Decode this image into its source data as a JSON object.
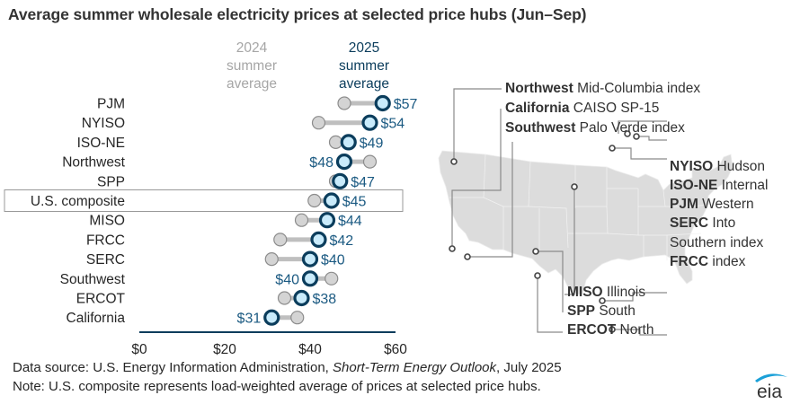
{
  "title": "Average summer wholesale electricity prices at selected price hubs (Jun–Sep)",
  "chart_data": {
    "type": "dumbbell",
    "title": "Average summer wholesale electricity prices at selected price hubs (Jun–Sep)",
    "xlabel": "",
    "ylabel": "",
    "xlim": [
      0,
      60
    ],
    "x_ticks": [
      "$0",
      "$20",
      "$40",
      "$60"
    ],
    "x_tick_values": [
      0,
      20,
      40,
      60
    ],
    "legend": {
      "series_2024": "2024 summer average",
      "series_2025": "2025 summer average",
      "placement": "top"
    },
    "highlighted_category": "U.S. composite",
    "categories": [
      "PJM",
      "NYISO",
      "ISO-NE",
      "Northwest",
      "SPP",
      "U.S. composite",
      "MISO",
      "FRCC",
      "SERC",
      "Southwest",
      "ERCOT",
      "California"
    ],
    "series": [
      {
        "name": "2024 summer average",
        "values": [
          48,
          42,
          46,
          54,
          46,
          41,
          38,
          33,
          31,
          45,
          34,
          37
        ],
        "color": "#c8c8c8"
      },
      {
        "name": "2025 summer average",
        "values": [
          57,
          54,
          49,
          48,
          47,
          45,
          44,
          42,
          40,
          40,
          38,
          31
        ],
        "color": "#0b3d5c"
      }
    ],
    "data_labels": [
      "$57",
      "$54",
      "$49",
      "$48",
      "$47",
      "$45",
      "$44",
      "$42",
      "$40",
      "$40",
      "$38",
      "$31"
    ],
    "label_side": [
      "right",
      "right",
      "right",
      "left",
      "right",
      "right",
      "right",
      "right",
      "right",
      "left",
      "right",
      "left"
    ]
  },
  "legend_text": {
    "y2024": [
      "2024",
      "summer",
      "average"
    ],
    "y2025": [
      "2025",
      "summer",
      "average"
    ]
  },
  "map": {
    "labels": [
      {
        "bold": "Northwest",
        "rest": " Mid-Columbia index"
      },
      {
        "bold": "California",
        "rest": " CAISO SP-15"
      },
      {
        "bold": "Southwest",
        "rest": " Palo Verde index"
      },
      {
        "bold": "NYISO",
        "rest": " Hudson"
      },
      {
        "bold": "ISO-NE",
        "rest": " Internal"
      },
      {
        "bold": "PJM",
        "rest": " Western"
      },
      {
        "bold": "SERC",
        "rest": " Into"
      },
      {
        "bold": "",
        "rest": "Southern index"
      },
      {
        "bold": "FRCC",
        "rest": " index"
      },
      {
        "bold": "MISO",
        "rest": " Illinois"
      },
      {
        "bold": "SPP",
        "rest": " South"
      },
      {
        "bold": "ERCOT",
        "rest": " North"
      }
    ]
  },
  "footer": {
    "source_prefix": "Data source: U.S. Energy Information Administration, ",
    "source_italic": "Short-Term Energy Outlook",
    "source_suffix": ", July 2025",
    "note": "Note: U.S. composite represents load-weighted average of prices at selected price hubs."
  },
  "logo": {
    "text": "eia"
  },
  "colors": {
    "dark": "#0b3d5c",
    "fill2025": "#c9ebfb",
    "gray": "#c8c8c8",
    "label": "#1b5a82"
  }
}
